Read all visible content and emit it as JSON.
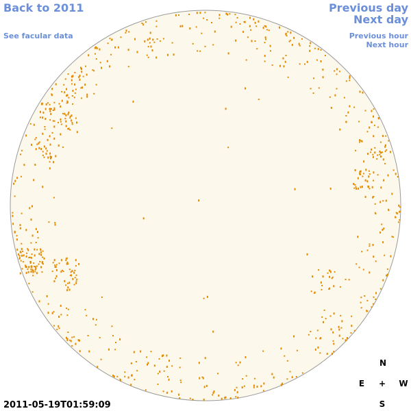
{
  "links": {
    "back": "Back to 2011",
    "facular": "See facular data",
    "previous_day": "Previous day",
    "next_day": "Next day",
    "previous_hour": "Previous hour",
    "next_hour": "Next hour"
  },
  "timestamp": "2011-05-19T01:59:09",
  "compass": {
    "north": "N",
    "east": "E",
    "center": "+",
    "west": "W",
    "south": "S"
  }
}
